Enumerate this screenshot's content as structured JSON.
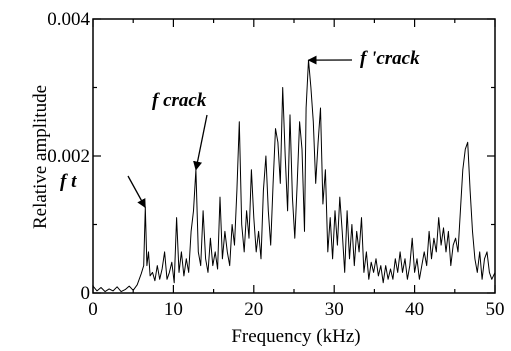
{
  "chart_data": {
    "type": "line",
    "title": "",
    "xlabel": "Frequency (kHz)",
    "ylabel": "Relative amplitude",
    "xlim": [
      0,
      50
    ],
    "ylim": [
      0,
      0.004
    ],
    "grid": false,
    "x_ticks": [
      0,
      10,
      20,
      30,
      40,
      50
    ],
    "y_ticks": [
      {
        "value": 0,
        "label": "0"
      },
      {
        "value": 0.002,
        "label": "0.002"
      },
      {
        "value": 0.004,
        "label": "0.004"
      }
    ],
    "annotations": [
      {
        "text": "f t",
        "x": 6.5,
        "y": 0.00125
      },
      {
        "text": "f crack",
        "x": 12.8,
        "y": 0.0018
      },
      {
        "text": "f 'crack",
        "x": 26.8,
        "y": 0.0034
      }
    ],
    "series": [
      {
        "color": "#000000",
        "points": [
          [
            0,
            0.0001
          ],
          [
            0.5,
            3e-05
          ],
          [
            1,
            8e-05
          ],
          [
            1.5,
            2e-05
          ],
          [
            2,
            6e-05
          ],
          [
            2.5,
            3e-05
          ],
          [
            3,
            9e-05
          ],
          [
            3.5,
            2e-05
          ],
          [
            4,
            5e-05
          ],
          [
            4.5,
            0.0001
          ],
          [
            5,
            4e-05
          ],
          [
            5.5,
            0.00012
          ],
          [
            6,
            0.00028
          ],
          [
            6.3,
            0.0004
          ],
          [
            6.5,
            0.00125
          ],
          [
            6.7,
            0.0004
          ],
          [
            6.9,
            0.0006
          ],
          [
            7.1,
            0.00025
          ],
          [
            7.4,
            0.0003
          ],
          [
            7.7,
            0.00018
          ],
          [
            8,
            0.0004
          ],
          [
            8.3,
            0.0002
          ],
          [
            8.6,
            0.00035
          ],
          [
            8.9,
            0.0006
          ],
          [
            9.2,
            0.0002
          ],
          [
            9.5,
            0.0003
          ],
          [
            9.8,
            0.00045
          ],
          [
            10.1,
            0.00015
          ],
          [
            10.4,
            0.0011
          ],
          [
            10.7,
            0.0003
          ],
          [
            11,
            0.0006
          ],
          [
            11.3,
            0.00025
          ],
          [
            11.6,
            0.0005
          ],
          [
            11.9,
            0.0003
          ],
          [
            12.2,
            0.0009
          ],
          [
            12.5,
            0.0012
          ],
          [
            12.8,
            0.0018
          ],
          [
            13.1,
            0.0006
          ],
          [
            13.4,
            0.0004
          ],
          [
            13.7,
            0.0012
          ],
          [
            14,
            0.0005
          ],
          [
            14.3,
            0.0003
          ],
          [
            14.6,
            0.0008
          ],
          [
            14.9,
            0.0004
          ],
          [
            15.2,
            0.0006
          ],
          [
            15.5,
            0.00035
          ],
          [
            15.8,
            0.0014
          ],
          [
            16.1,
            0.0005
          ],
          [
            16.4,
            0.0009
          ],
          [
            16.7,
            0.0006
          ],
          [
            17,
            0.0004
          ],
          [
            17.3,
            0.001
          ],
          [
            17.6,
            0.0007
          ],
          [
            17.9,
            0.0015
          ],
          [
            18.2,
            0.0025
          ],
          [
            18.5,
            0.001
          ],
          [
            18.8,
            0.0006
          ],
          [
            19.1,
            0.0012
          ],
          [
            19.4,
            0.0008
          ],
          [
            19.7,
            0.0018
          ],
          [
            20,
            0.0011
          ],
          [
            20.3,
            0.0006
          ],
          [
            20.6,
            0.0009
          ],
          [
            20.9,
            0.0005
          ],
          [
            21.2,
            0.0015
          ],
          [
            21.5,
            0.002
          ],
          [
            21.8,
            0.0012
          ],
          [
            22.1,
            0.0007
          ],
          [
            22.4,
            0.0016
          ],
          [
            22.7,
            0.0024
          ],
          [
            23,
            0.0022
          ],
          [
            23.3,
            0.0016
          ],
          [
            23.6,
            0.003
          ],
          [
            23.9,
            0.002
          ],
          [
            24.2,
            0.0012
          ],
          [
            24.5,
            0.0026
          ],
          [
            24.8,
            0.0014
          ],
          [
            25.1,
            0.0008
          ],
          [
            25.4,
            0.0016
          ],
          [
            25.7,
            0.0025
          ],
          [
            26,
            0.0021
          ],
          [
            26.3,
            0.0009
          ],
          [
            26.5,
            0.0027
          ],
          [
            26.8,
            0.0034
          ],
          [
            27.1,
            0.003
          ],
          [
            27.4,
            0.0025
          ],
          [
            27.7,
            0.0016
          ],
          [
            28,
            0.0022
          ],
          [
            28.3,
            0.0027
          ],
          [
            28.6,
            0.0013
          ],
          [
            28.9,
            0.0018
          ],
          [
            29.2,
            0.0006
          ],
          [
            29.5,
            0.0011
          ],
          [
            29.8,
            0.0005
          ],
          [
            30.1,
            0.0012
          ],
          [
            30.4,
            0.0007
          ],
          [
            30.7,
            0.0014
          ],
          [
            31,
            0.0009
          ],
          [
            31.3,
            0.0003
          ],
          [
            31.6,
            0.0012
          ],
          [
            31.9,
            0.0005
          ],
          [
            32.2,
            0.001
          ],
          [
            32.5,
            0.0004
          ],
          [
            32.8,
            0.0009
          ],
          [
            33.1,
            0.0006
          ],
          [
            33.4,
            0.0011
          ],
          [
            33.7,
            0.0003
          ],
          [
            34,
            0.0006
          ],
          [
            34.3,
            0.0002
          ],
          [
            34.6,
            0.00045
          ],
          [
            34.9,
            0.0003
          ],
          [
            35.2,
            0.0005
          ],
          [
            35.5,
            0.00025
          ],
          [
            35.8,
            0.0004
          ],
          [
            36.1,
            0.00015
          ],
          [
            36.4,
            0.0004
          ],
          [
            36.7,
            0.0002
          ],
          [
            37,
            0.00035
          ],
          [
            37.3,
            0.0002
          ],
          [
            37.6,
            0.0005
          ],
          [
            37.9,
            0.0003
          ],
          [
            38.2,
            0.0006
          ],
          [
            38.5,
            0.0003
          ],
          [
            38.8,
            0.0005
          ],
          [
            39.1,
            0.0002
          ],
          [
            39.4,
            0.0004
          ],
          [
            39.7,
            0.0008
          ],
          [
            40,
            0.0003
          ],
          [
            40.3,
            0.0005
          ],
          [
            40.6,
            0.0002
          ],
          [
            40.9,
            0.0004
          ],
          [
            41.2,
            0.0006
          ],
          [
            41.5,
            0.0004
          ],
          [
            41.8,
            0.0009
          ],
          [
            42.1,
            0.0005
          ],
          [
            42.4,
            0.0008
          ],
          [
            42.7,
            0.0006
          ],
          [
            43,
            0.0011
          ],
          [
            43.3,
            0.0007
          ],
          [
            43.6,
            0.00095
          ],
          [
            43.9,
            0.0006
          ],
          [
            44.2,
            0.0009
          ],
          [
            44.5,
            0.0004
          ],
          [
            44.8,
            0.0007
          ],
          [
            45.1,
            0.0008
          ],
          [
            45.4,
            0.0006
          ],
          [
            45.7,
            0.0012
          ],
          [
            46,
            0.0018
          ],
          [
            46.3,
            0.0021
          ],
          [
            46.6,
            0.0022
          ],
          [
            46.9,
            0.0015
          ],
          [
            47.2,
            0.0009
          ],
          [
            47.5,
            0.0005
          ],
          [
            47.8,
            0.0003
          ],
          [
            48.1,
            0.0006
          ],
          [
            48.4,
            0.0002
          ],
          [
            48.7,
            0.0005
          ],
          [
            49,
            0.0006
          ],
          [
            49.3,
            0.0003
          ],
          [
            49.6,
            0.0002
          ],
          [
            50,
            0.0003
          ]
        ]
      }
    ]
  }
}
